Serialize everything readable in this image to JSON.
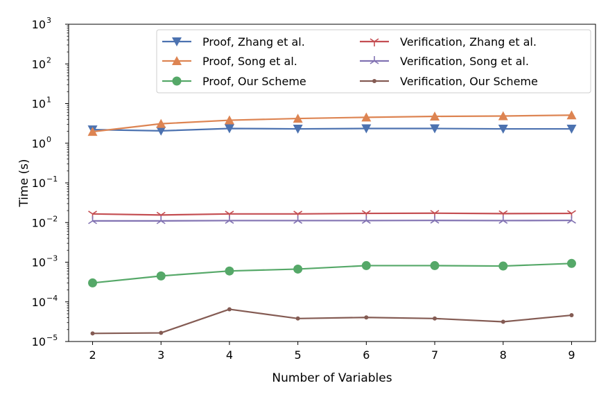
{
  "chart_data": {
    "type": "line",
    "xlabel": "Number of Variables",
    "ylabel": "Time (s)",
    "yscale": "log",
    "xlim": [
      1.65,
      9.35
    ],
    "ylim": [
      1e-05,
      1000
    ],
    "x": [
      2,
      3,
      4,
      5,
      6,
      7,
      8,
      9
    ],
    "x_ticks": [
      "2",
      "3",
      "4",
      "5",
      "6",
      "7",
      "8",
      "9"
    ],
    "y_ticks": [
      {
        "base": "10",
        "exp": "−5",
        "value": 1e-05
      },
      {
        "base": "10",
        "exp": "−4",
        "value": 0.0001
      },
      {
        "base": "10",
        "exp": "−3",
        "value": 0.001
      },
      {
        "base": "10",
        "exp": "−2",
        "value": 0.01
      },
      {
        "base": "10",
        "exp": "−1",
        "value": 0.1
      },
      {
        "base": "10",
        "exp": "0",
        "value": 1
      },
      {
        "base": "10",
        "exp": "1",
        "value": 10
      },
      {
        "base": "10",
        "exp": "2",
        "value": 100
      },
      {
        "base": "10",
        "exp": "3",
        "value": 1000
      }
    ],
    "grid": false,
    "legend_position": "top-right",
    "legend_columns": 2,
    "series": [
      {
        "name": "Proof, Zhang et al.",
        "color": "#4c72b0",
        "marker": "triangle-down",
        "values": [
          2.2,
          2.05,
          2.35,
          2.3,
          2.35,
          2.35,
          2.3,
          2.3
        ]
      },
      {
        "name": "Proof, Song et al.",
        "color": "#dd8452",
        "marker": "triangle-up",
        "values": [
          1.95,
          3.1,
          3.8,
          4.2,
          4.5,
          4.75,
          4.85,
          5.1
        ]
      },
      {
        "name": "Proof, Our Scheme",
        "color": "#55a868",
        "marker": "circle",
        "values": [
          0.0003,
          0.00045,
          0.0006,
          0.00067,
          0.00082,
          0.00082,
          0.0008,
          0.00093
        ]
      },
      {
        "name": "Verification, Zhang et al.",
        "color": "#c44e52",
        "marker": "tri-down",
        "values": [
          0.0165,
          0.0155,
          0.0165,
          0.0165,
          0.017,
          0.0172,
          0.0168,
          0.017
        ]
      },
      {
        "name": "Verification, Song et al.",
        "color": "#8172b2",
        "marker": "tri-up",
        "values": [
          0.011,
          0.011,
          0.0112,
          0.0112,
          0.0112,
          0.0113,
          0.0112,
          0.0113
        ]
      },
      {
        "name": "Verification, Our Scheme",
        "color": "#845b53",
        "marker": "dot",
        "values": [
          1.6e-05,
          1.65e-05,
          6.5e-05,
          3.8e-05,
          4.05e-05,
          3.8e-05,
          3.15e-05,
          4.6e-05
        ]
      }
    ]
  }
}
